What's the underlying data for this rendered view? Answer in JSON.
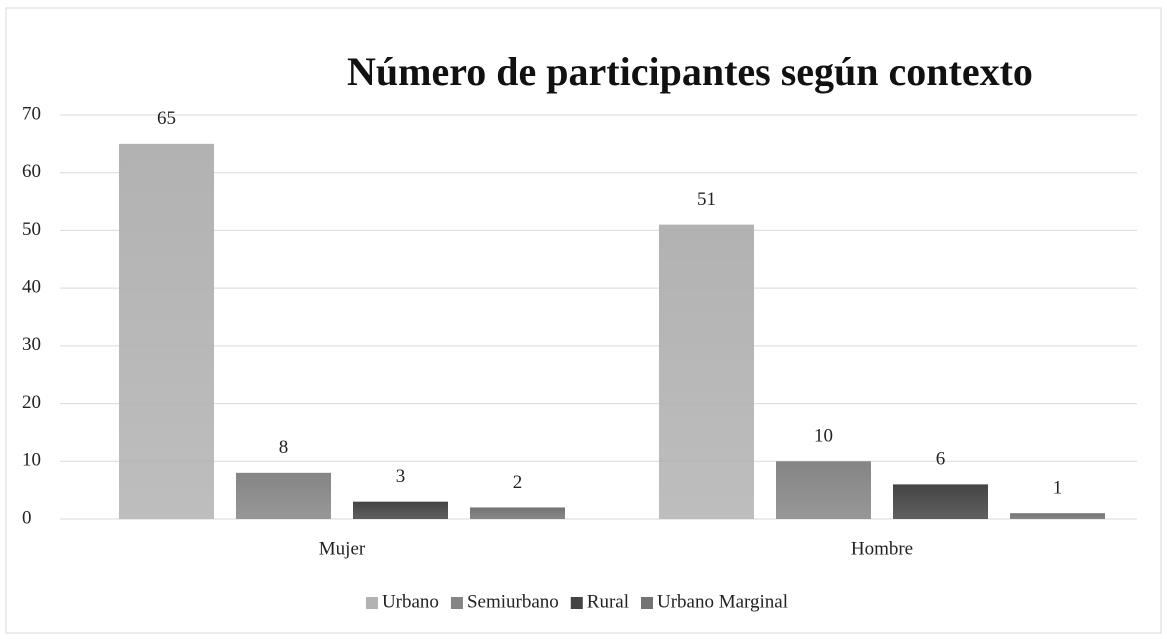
{
  "chart_data": {
    "type": "bar",
    "title": "Número de participantes según contexto",
    "categories": [
      "Mujer",
      "Hombre"
    ],
    "series": [
      {
        "name": "Urbano",
        "color": "#b2b2b2",
        "values": [
          65,
          51
        ]
      },
      {
        "name": "Semiurbano",
        "color": "#858585",
        "values": [
          8,
          10
        ]
      },
      {
        "name": "Rural",
        "color": "#444444",
        "values": [
          3,
          6
        ]
      },
      {
        "name": "Urbano Marginal",
        "color": "#737373",
        "values": [
          2,
          1
        ]
      }
    ],
    "ylim": [
      0,
      70
    ],
    "yticks": [
      0,
      10,
      20,
      30,
      40,
      50,
      60,
      70
    ],
    "grid": true,
    "legend": "bottom"
  }
}
